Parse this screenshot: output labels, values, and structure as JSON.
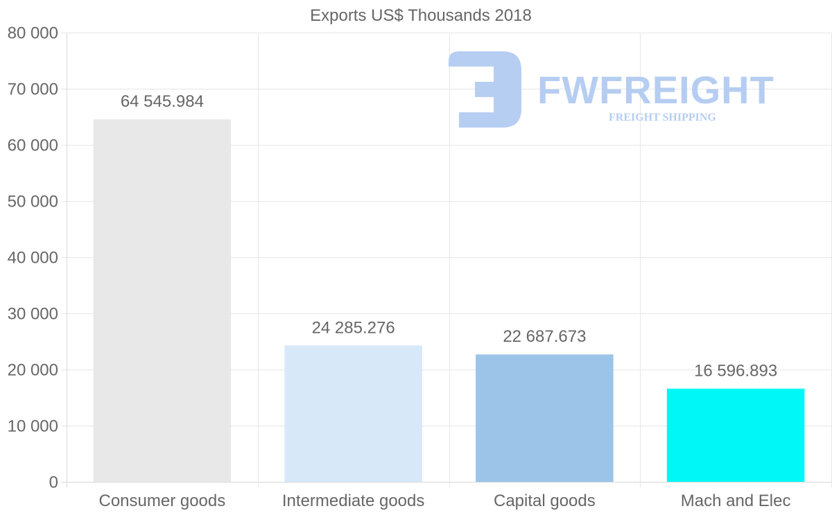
{
  "chart_data": {
    "type": "bar",
    "title": "Exports US$ Thousands 2018",
    "categories": [
      "Consumer goods",
      "Intermediate goods",
      "Capital goods",
      "Mach and Elec"
    ],
    "values": [
      64545.984,
      24285.276,
      22687.673,
      16596.893
    ],
    "value_labels": [
      "64 545.984",
      "24 285.276",
      "22 687.673",
      "16 596.893"
    ],
    "bar_colors": [
      "#e8e8e8",
      "#d7e8f9",
      "#9bc4e8",
      "#00f7f7"
    ],
    "ylim": [
      0,
      80000
    ],
    "y_ticks": [
      0,
      10000,
      20000,
      30000,
      40000,
      50000,
      60000,
      70000,
      80000
    ],
    "y_tick_labels": [
      "0",
      "10 000",
      "20 000",
      "30 000",
      "40 000",
      "50 000",
      "60 000",
      "70 000",
      "80 000"
    ],
    "xlabel": "",
    "ylabel": "",
    "grid": true
  },
  "watermark": {
    "brand": "FWFREIGHT",
    "tagline": "FREIGHT SHIPPING"
  }
}
